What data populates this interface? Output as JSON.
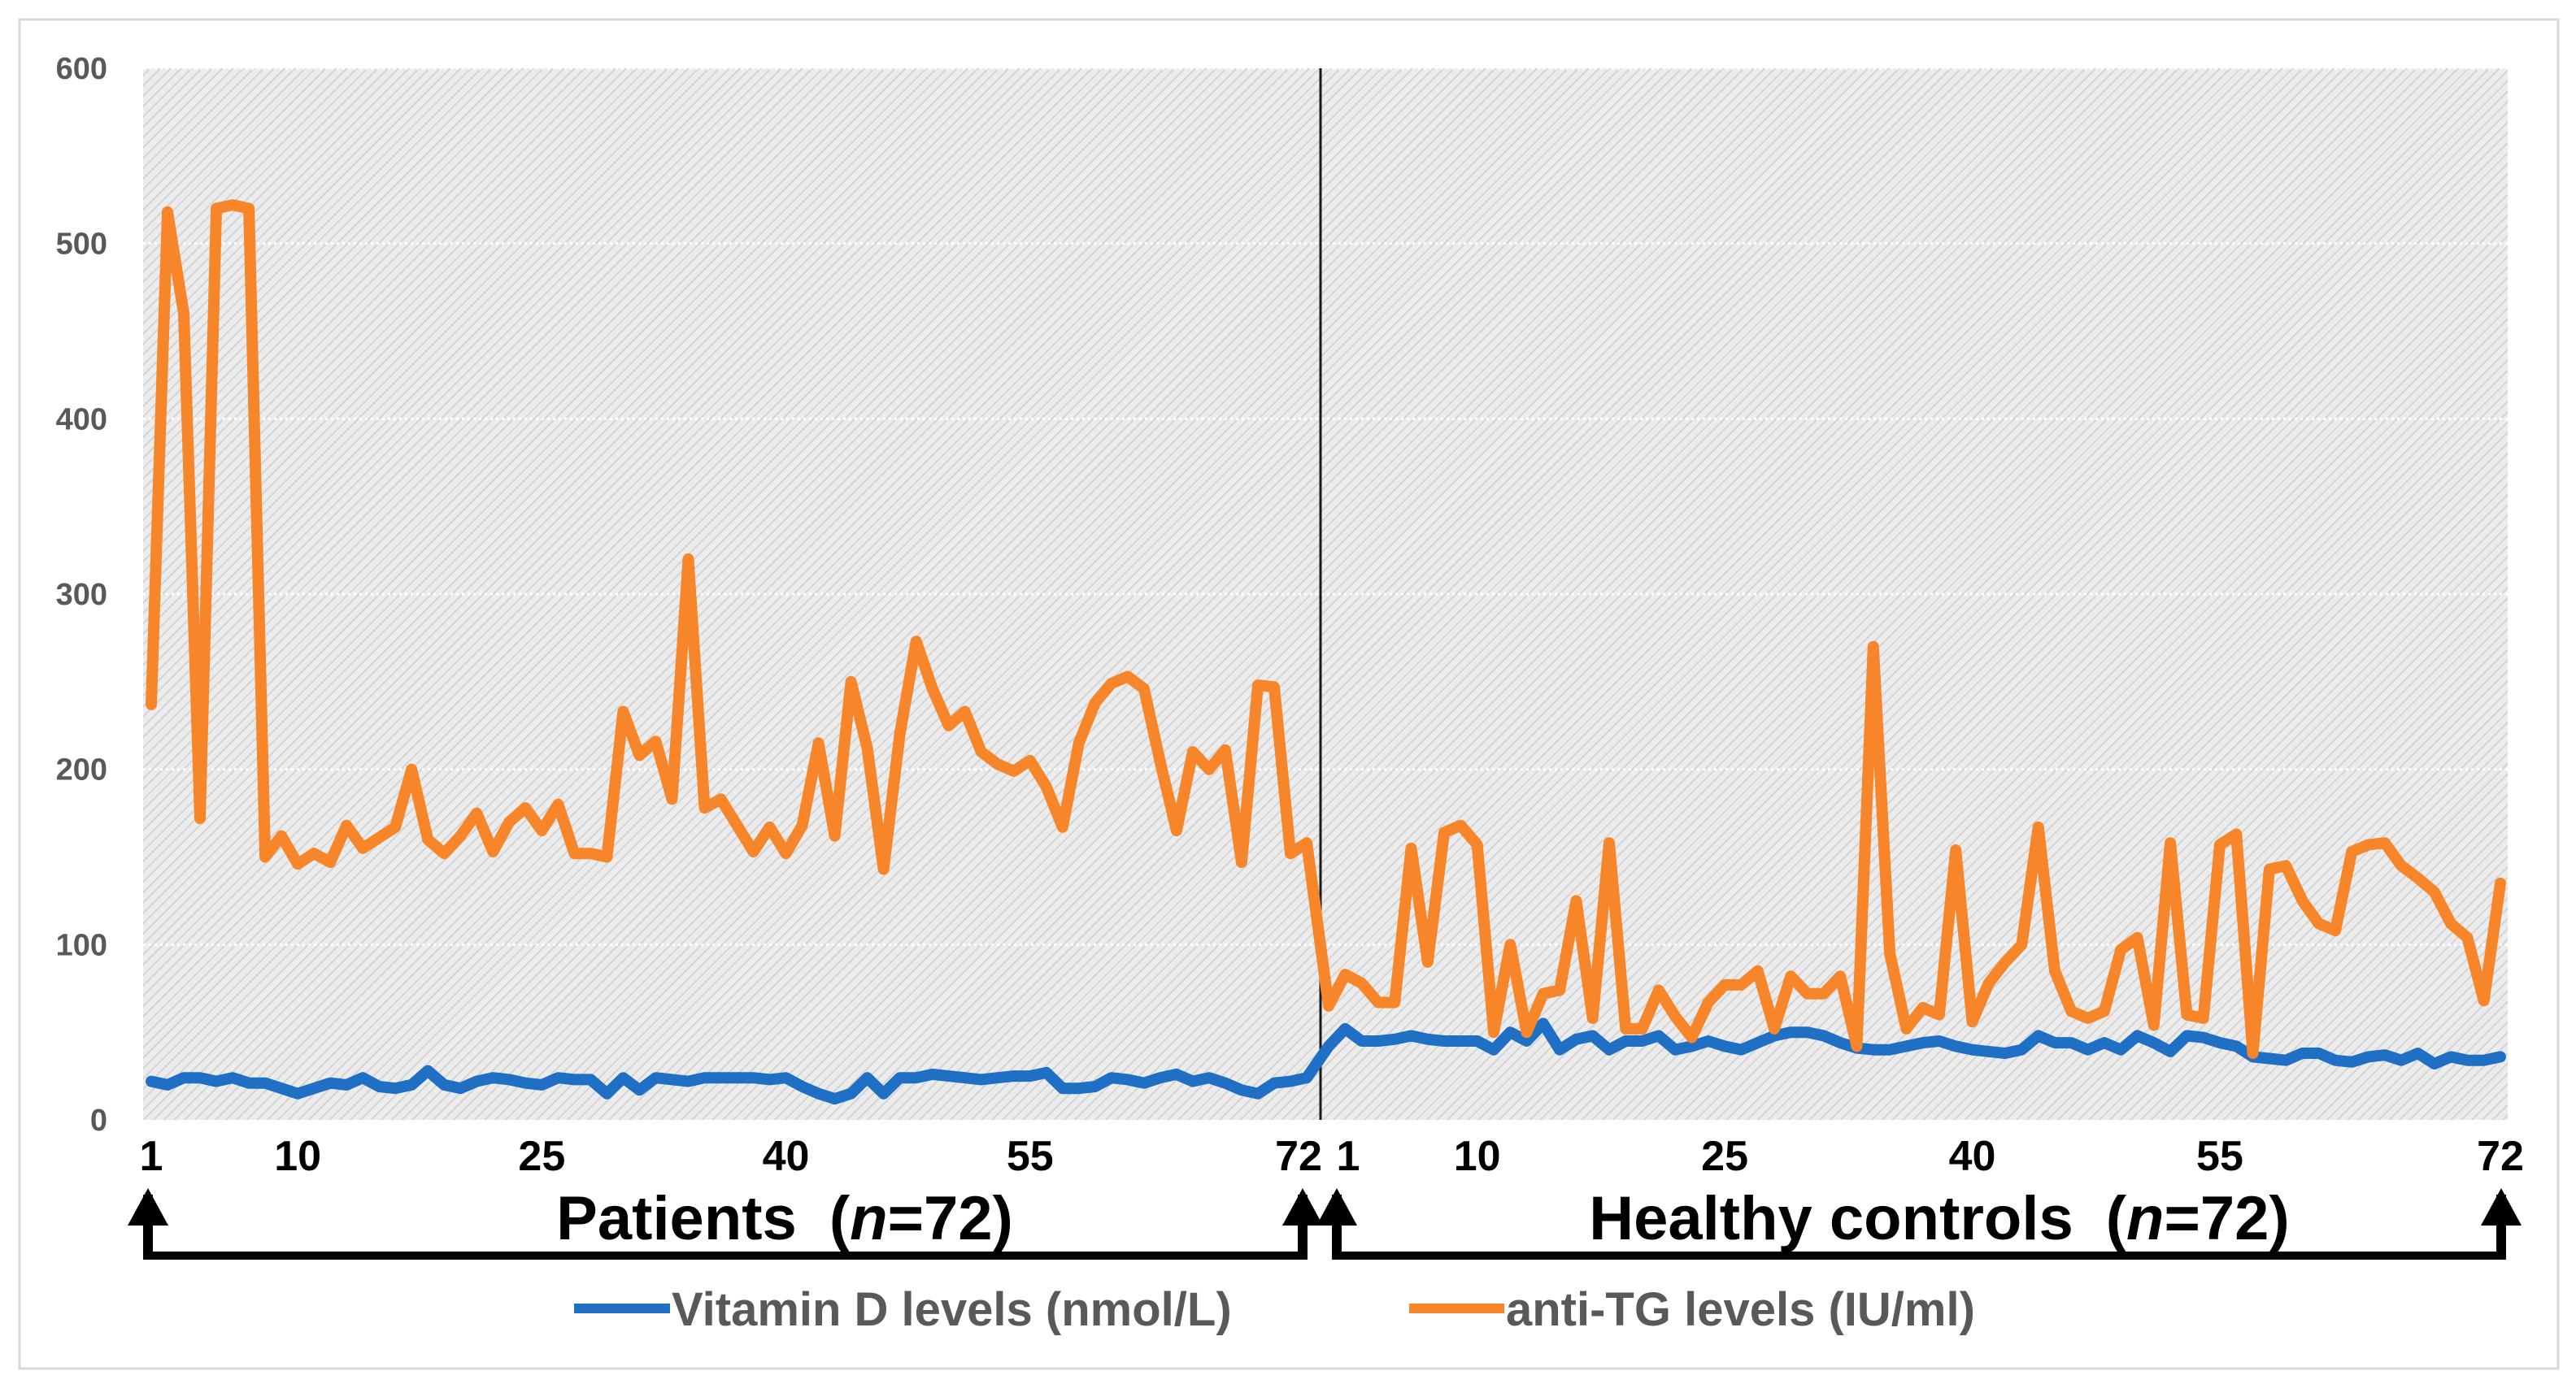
{
  "chart_data": {
    "type": "line",
    "title": "",
    "xlabel": "",
    "ylabel": "",
    "ylim": [
      0,
      600
    ],
    "yticks": [
      0,
      100,
      200,
      300,
      400,
      500,
      600
    ],
    "groups": [
      {
        "label": "Patients",
        "n_label": "n",
        "n_value": "=72",
        "tick_labels": [
          "1",
          "10",
          "25",
          "40",
          "55",
          "72"
        ],
        "tick_indices": [
          1,
          10,
          25,
          40,
          55,
          72
        ]
      },
      {
        "label": "Healthy controls",
        "n_label": "n",
        "n_value": "=72",
        "tick_labels": [
          "1",
          "10",
          "25",
          "40",
          "55",
          "72"
        ],
        "tick_indices": [
          1,
          10,
          25,
          40,
          55,
          72
        ]
      }
    ],
    "series": [
      {
        "name": "Vitamin D levels (nmol/L)",
        "color": "#1f6fc5",
        "patients": [
          22,
          20,
          24,
          24,
          22,
          24,
          21,
          21,
          18,
          15,
          18,
          21,
          20,
          24,
          19,
          18,
          20,
          28,
          20,
          18,
          22,
          24,
          23,
          21,
          20,
          24,
          23,
          23,
          15,
          24,
          17,
          24,
          23,
          22,
          24,
          24,
          24,
          24,
          23,
          24,
          19,
          15,
          12,
          15,
          24,
          15,
          24,
          24,
          26,
          25,
          24,
          23,
          24,
          25,
          25,
          27,
          18,
          18,
          19,
          24,
          23,
          21,
          24,
          26,
          22,
          24,
          21,
          17,
          15,
          21,
          22,
          24
        ],
        "controls": [
          42,
          52,
          45,
          45,
          46,
          48,
          46,
          45,
          45,
          45,
          40,
          50,
          45,
          55,
          40,
          46,
          48,
          40,
          45,
          45,
          48,
          40,
          42,
          45,
          42,
          40,
          44,
          48,
          50,
          50,
          48,
          44,
          41,
          40,
          40,
          42,
          44,
          45,
          42,
          40,
          39,
          38,
          40,
          48,
          44,
          44,
          40,
          44,
          40,
          48,
          44,
          39,
          48,
          47,
          44,
          42,
          36,
          35,
          34,
          38,
          38,
          34,
          33,
          36,
          37,
          34,
          38,
          32,
          36,
          34,
          34,
          36
        ]
      },
      {
        "name": "anti-TG levels (IU/ml)",
        "color": "#f7862a",
        "patients": [
          237,
          518,
          460,
          172,
          520,
          522,
          520,
          150,
          162,
          146,
          152,
          147,
          168,
          155,
          161,
          167,
          200,
          160,
          152,
          162,
          175,
          153,
          170,
          178,
          165,
          180,
          152,
          152,
          150,
          233,
          208,
          216,
          183,
          320,
          178,
          183,
          168,
          153,
          167,
          152,
          168,
          215,
          162,
          250,
          212,
          143,
          220,
          273,
          246,
          225,
          233,
          210,
          203,
          199,
          205,
          190,
          167,
          215,
          238,
          249,
          253,
          246,
          204,
          165,
          210,
          200,
          211,
          147,
          248,
          247,
          152,
          158
        ],
        "controls": [
          65,
          83,
          78,
          67,
          67,
          155,
          90,
          164,
          168,
          157,
          50,
          100,
          50,
          72,
          74,
          125,
          58,
          158,
          52,
          52,
          74,
          59,
          47,
          67,
          77,
          77,
          85,
          52,
          82,
          72,
          72,
          82,
          42,
          270,
          95,
          52,
          64,
          60,
          154,
          56,
          78,
          90,
          100,
          167,
          85,
          62,
          58,
          62,
          97,
          104,
          54,
          158,
          60,
          58,
          157,
          163,
          38,
          143,
          145,
          125,
          112,
          108,
          153,
          157,
          158,
          145,
          138,
          130,
          112,
          104,
          68,
          135
        ]
      }
    ],
    "legend": {
      "position": "bottom"
    }
  }
}
